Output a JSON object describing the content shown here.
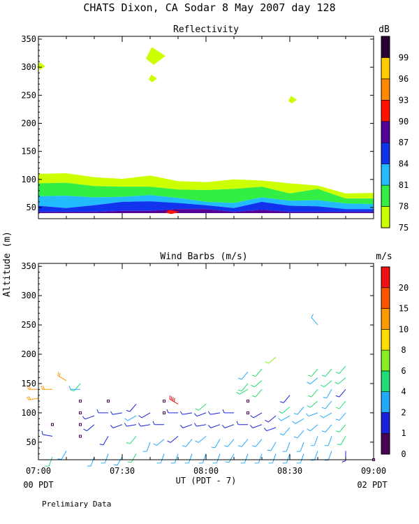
{
  "page": {
    "title": "CHATS Dixon, CA  Sodar   8 May 2007  day 128",
    "footer_note": "Prelimiary Data",
    "y_axis_label": "Altitude (m)",
    "x_axis_label": "UT  (PDT - 7)",
    "x_left_sub": "00 PDT",
    "x_right_sub": "02 PDT"
  },
  "chart_data": [
    {
      "type": "heatmap",
      "title": "Reflectivity",
      "colorbar_unit": "dB",
      "x_ticks": [
        "07:00",
        "07:30",
        "08:00",
        "08:30",
        "09:00"
      ],
      "xlim": [
        "07:00",
        "09:00"
      ],
      "y_ticks": [
        50,
        100,
        150,
        200,
        250,
        300,
        350
      ],
      "ylim": [
        30,
        355
      ],
      "levels": [
        75,
        78,
        81,
        84,
        87,
        90,
        93,
        96,
        99
      ],
      "level_colors": [
        "#ccff00",
        "#33ee44",
        "#22bbff",
        "#1133ee",
        "#550099",
        "#ff1100",
        "#ff8800",
        "#ffcc00",
        "#2a0033"
      ],
      "bands": [
        {
          "level": 75,
          "top": [
            110,
            111,
            104,
            101,
            107,
            97,
            95,
            100,
            98,
            93,
            89,
            75,
            76,
            78
          ],
          "bottom": [
            93,
            94,
            88,
            87,
            87,
            82,
            81,
            83,
            87,
            75,
            83,
            66,
            66,
            70
          ]
        },
        {
          "level": 78,
          "top": [
            93,
            94,
            88,
            87,
            87,
            82,
            81,
            83,
            87,
            75,
            83,
            66,
            66,
            70
          ],
          "bottom": [
            70,
            71,
            68,
            69,
            72,
            67,
            60,
            58,
            68,
            62,
            63,
            57,
            56,
            62
          ]
        },
        {
          "level": 81,
          "top": [
            70,
            71,
            68,
            69,
            72,
            67,
            60,
            58,
            68,
            62,
            63,
            57,
            56,
            62
          ],
          "bottom": [
            53,
            49,
            54,
            60,
            61,
            58,
            54,
            49,
            60,
            53,
            52,
            47,
            47,
            52
          ]
        },
        {
          "level": 84,
          "top": [
            53,
            49,
            54,
            60,
            61,
            58,
            54,
            49,
            60,
            53,
            52,
            47,
            47,
            52
          ],
          "bottom": [
            42,
            42,
            42,
            44,
            44,
            47,
            47,
            42,
            46,
            42,
            42,
            42,
            42,
            42
          ]
        },
        {
          "level": 87,
          "top": [
            42,
            42,
            42,
            44,
            44,
            47,
            47,
            42,
            46,
            42,
            42,
            42,
            42,
            42
          ],
          "bottom": [
            40,
            40,
            40,
            40,
            40,
            40,
            40,
            40,
            40,
            40,
            40,
            40,
            40,
            40
          ]
        }
      ],
      "band_times": [
        "07:00",
        "07:10",
        "07:20",
        "07:30",
        "07:40",
        "07:50",
        "08:00",
        "08:10",
        "08:20",
        "08:30",
        "08:40",
        "08:50",
        "09:00",
        "09:00"
      ],
      "patches": [
        {
          "level": 90,
          "time": "07:48",
          "alt": 42
        },
        {
          "level": 75,
          "time": "07:42",
          "alt": 320
        },
        {
          "level": 75,
          "time": "07:41",
          "alt": 280
        },
        {
          "level": 75,
          "time": "07:01",
          "alt": 302
        },
        {
          "level": 75,
          "time": "08:31",
          "alt": 242
        }
      ]
    },
    {
      "type": "scatter",
      "title": "Wind Barbs (m/s)",
      "colorbar_unit": "m/s",
      "x_ticks": [
        "07:00",
        "07:30",
        "08:00",
        "08:30",
        "09:00"
      ],
      "xlim": [
        "07:00",
        "09:00"
      ],
      "y_ticks": [
        50,
        100,
        150,
        200,
        250,
        300,
        350
      ],
      "ylim": [
        20,
        355
      ],
      "levels": [
        0,
        1,
        2,
        4,
        6,
        8,
        10,
        15,
        20
      ],
      "level_colors": [
        "#4a0055",
        "#1a22dd",
        "#22aaff",
        "#22dd77",
        "#88ee22",
        "#ffdd00",
        "#ff9900",
        "#ff5500",
        "#ee1111"
      ],
      "barbs": [
        {
          "time": "07:00",
          "alt": 140,
          "speed": 12,
          "dir": 270
        },
        {
          "time": "07:00",
          "alt": 125,
          "speed": 12,
          "dir": 260
        },
        {
          "time": "07:05",
          "alt": 140,
          "speed": 12,
          "dir": 270
        },
        {
          "time": "07:05",
          "alt": 80,
          "speed": 0.5,
          "dir": 0
        },
        {
          "time": "07:05",
          "alt": 60,
          "speed": 1.5,
          "dir": 280
        },
        {
          "time": "07:05",
          "alt": 25,
          "speed": 5,
          "dir": 200
        },
        {
          "time": "07:10",
          "alt": 155,
          "speed": 12,
          "dir": 300
        },
        {
          "time": "07:10",
          "alt": 35,
          "speed": 3,
          "dir": 210
        },
        {
          "time": "07:15",
          "alt": 150,
          "speed": 5,
          "dir": 220
        },
        {
          "time": "07:15",
          "alt": 140,
          "speed": 3,
          "dir": 270
        },
        {
          "time": "07:15",
          "alt": 120,
          "speed": 0.5,
          "dir": 0
        },
        {
          "time": "07:15",
          "alt": 100,
          "speed": 0.5,
          "dir": 0
        },
        {
          "time": "07:15",
          "alt": 80,
          "speed": 0.5,
          "dir": 0
        },
        {
          "time": "07:15",
          "alt": 60,
          "speed": 0.5,
          "dir": 0
        },
        {
          "time": "07:20",
          "alt": 95,
          "speed": 1.5,
          "dir": 250
        },
        {
          "time": "07:20",
          "alt": 80,
          "speed": 1.5,
          "dir": 230
        },
        {
          "time": "07:20",
          "alt": 25,
          "speed": 3,
          "dir": 200
        },
        {
          "time": "07:25",
          "alt": 120,
          "speed": 0.5,
          "dir": 0
        },
        {
          "time": "07:25",
          "alt": 100,
          "speed": 1.5,
          "dir": 270
        },
        {
          "time": "07:25",
          "alt": 60,
          "speed": 1.5,
          "dir": 210
        },
        {
          "time": "07:25",
          "alt": 30,
          "speed": 3,
          "dir": 200
        },
        {
          "time": "07:30",
          "alt": 100,
          "speed": 1.5,
          "dir": 260
        },
        {
          "time": "07:30",
          "alt": 80,
          "speed": 1.5,
          "dir": 250
        },
        {
          "time": "07:30",
          "alt": 25,
          "speed": 3,
          "dir": 210
        },
        {
          "time": "07:35",
          "alt": 115,
          "speed": 1.5,
          "dir": 220
        },
        {
          "time": "07:35",
          "alt": 95,
          "speed": 3,
          "dir": 240
        },
        {
          "time": "07:35",
          "alt": 80,
          "speed": 1.5,
          "dir": 260
        },
        {
          "time": "07:35",
          "alt": 60,
          "speed": 5,
          "dir": 220
        },
        {
          "time": "07:35",
          "alt": 30,
          "speed": 4,
          "dir": 210
        },
        {
          "time": "07:40",
          "alt": 100,
          "speed": 1.5,
          "dir": 240
        },
        {
          "time": "07:40",
          "alt": 80,
          "speed": 1.5,
          "dir": 260
        },
        {
          "time": "07:40",
          "alt": 50,
          "speed": 3,
          "dir": 200
        },
        {
          "time": "07:45",
          "alt": 120,
          "speed": 0.5,
          "dir": 0
        },
        {
          "time": "07:45",
          "alt": 100,
          "speed": 0.5,
          "dir": 0
        },
        {
          "time": "07:45",
          "alt": 80,
          "speed": 1.5,
          "dir": 270
        },
        {
          "time": "07:45",
          "alt": 55,
          "speed": 3,
          "dir": 230
        },
        {
          "time": "07:45",
          "alt": 30,
          "speed": 3,
          "dir": 200
        },
        {
          "time": "07:50",
          "alt": 115,
          "speed": 20,
          "dir": 300
        },
        {
          "time": "07:50",
          "alt": 100,
          "speed": 1.5,
          "dir": 270
        },
        {
          "time": "07:50",
          "alt": 60,
          "speed": 1.5,
          "dir": 230
        },
        {
          "time": "07:50",
          "alt": 30,
          "speed": 3,
          "dir": 200
        },
        {
          "time": "07:55",
          "alt": 100,
          "speed": 1.5,
          "dir": 260
        },
        {
          "time": "07:55",
          "alt": 80,
          "speed": 1.5,
          "dir": 250
        },
        {
          "time": "07:55",
          "alt": 55,
          "speed": 3,
          "dir": 220
        },
        {
          "time": "07:55",
          "alt": 30,
          "speed": 3,
          "dir": 200
        },
        {
          "time": "08:00",
          "alt": 115,
          "speed": 5,
          "dir": 230
        },
        {
          "time": "08:00",
          "alt": 100,
          "speed": 1.5,
          "dir": 250
        },
        {
          "time": "08:00",
          "alt": 80,
          "speed": 1.5,
          "dir": 260
        },
        {
          "time": "08:00",
          "alt": 60,
          "speed": 3,
          "dir": 230
        },
        {
          "time": "08:00",
          "alt": 30,
          "speed": 3,
          "dir": 200
        },
        {
          "time": "08:05",
          "alt": 100,
          "speed": 1.5,
          "dir": 260
        },
        {
          "time": "08:05",
          "alt": 80,
          "speed": 1.5,
          "dir": 250
        },
        {
          "time": "08:05",
          "alt": 55,
          "speed": 3,
          "dir": 210
        },
        {
          "time": "08:05",
          "alt": 30,
          "speed": 3,
          "dir": 200
        },
        {
          "time": "08:10",
          "alt": 100,
          "speed": 1.5,
          "dir": 270
        },
        {
          "time": "08:10",
          "alt": 80,
          "speed": 1.5,
          "dir": 250
        },
        {
          "time": "08:10",
          "alt": 55,
          "speed": 3,
          "dir": 220
        },
        {
          "time": "08:10",
          "alt": 30,
          "speed": 3,
          "dir": 210
        },
        {
          "time": "08:15",
          "alt": 170,
          "speed": 3,
          "dir": 220
        },
        {
          "time": "08:15",
          "alt": 150,
          "speed": 4,
          "dir": 220
        },
        {
          "time": "08:15",
          "alt": 140,
          "speed": 4,
          "dir": 240
        },
        {
          "time": "08:15",
          "alt": 120,
          "speed": 0.5,
          "dir": 0
        },
        {
          "time": "08:15",
          "alt": 100,
          "speed": 0.5,
          "dir": 0
        },
        {
          "time": "08:15",
          "alt": 80,
          "speed": 1.5,
          "dir": 270
        },
        {
          "time": "08:15",
          "alt": 55,
          "speed": 3,
          "dir": 220
        },
        {
          "time": "08:15",
          "alt": 30,
          "speed": 3,
          "dir": 200
        },
        {
          "time": "08:20",
          "alt": 175,
          "speed": 5,
          "dir": 220
        },
        {
          "time": "08:20",
          "alt": 155,
          "speed": 5,
          "dir": 230
        },
        {
          "time": "08:20",
          "alt": 140,
          "speed": 5,
          "dir": 220
        },
        {
          "time": "08:20",
          "alt": 100,
          "speed": 1.5,
          "dir": 240
        },
        {
          "time": "08:20",
          "alt": 80,
          "speed": 1.5,
          "dir": 250
        },
        {
          "time": "08:20",
          "alt": 55,
          "speed": 3,
          "dir": 220
        },
        {
          "time": "08:20",
          "alt": 30,
          "speed": 3,
          "dir": 200
        },
        {
          "time": "08:25",
          "alt": 195,
          "speed": 7,
          "dir": 230
        },
        {
          "time": "08:25",
          "alt": 95,
          "speed": 1.5,
          "dir": 230
        },
        {
          "time": "08:25",
          "alt": 75,
          "speed": 1.5,
          "dir": 250
        },
        {
          "time": "08:25",
          "alt": 50,
          "speed": 3,
          "dir": 210
        },
        {
          "time": "08:25",
          "alt": 30,
          "speed": 3,
          "dir": 200
        },
        {
          "time": "08:30",
          "alt": 130,
          "speed": 1.5,
          "dir": 220
        },
        {
          "time": "08:30",
          "alt": 110,
          "speed": 5,
          "dir": 230
        },
        {
          "time": "08:30",
          "alt": 95,
          "speed": 3,
          "dir": 240
        },
        {
          "time": "08:30",
          "alt": 75,
          "speed": 3,
          "dir": 220
        },
        {
          "time": "08:30",
          "alt": 50,
          "speed": 3,
          "dir": 200
        },
        {
          "time": "08:30",
          "alt": 30,
          "speed": 3,
          "dir": 200
        },
        {
          "time": "08:35",
          "alt": 110,
          "speed": 3,
          "dir": 220
        },
        {
          "time": "08:35",
          "alt": 90,
          "speed": 3,
          "dir": 240
        },
        {
          "time": "08:35",
          "alt": 70,
          "speed": 3,
          "dir": 220
        },
        {
          "time": "08:35",
          "alt": 50,
          "speed": 3,
          "dir": 200
        },
        {
          "time": "08:35",
          "alt": 30,
          "speed": 3,
          "dir": 200
        },
        {
          "time": "08:40",
          "alt": 250,
          "speed": 3,
          "dir": 320
        },
        {
          "time": "08:40",
          "alt": 175,
          "speed": 4,
          "dir": 220
        },
        {
          "time": "08:40",
          "alt": 160,
          "speed": 3,
          "dir": 230
        },
        {
          "time": "08:40",
          "alt": 140,
          "speed": 4,
          "dir": 220
        },
        {
          "time": "08:40",
          "alt": 120,
          "speed": 4,
          "dir": 230
        },
        {
          "time": "08:40",
          "alt": 100,
          "speed": 3,
          "dir": 250
        },
        {
          "time": "08:40",
          "alt": 80,
          "speed": 3,
          "dir": 230
        },
        {
          "time": "08:40",
          "alt": 60,
          "speed": 3,
          "dir": 200
        },
        {
          "time": "08:40",
          "alt": 35,
          "speed": 3,
          "dir": 200
        },
        {
          "time": "08:45",
          "alt": 175,
          "speed": 5,
          "dir": 220
        },
        {
          "time": "08:45",
          "alt": 155,
          "speed": 4,
          "dir": 230
        },
        {
          "time": "08:45",
          "alt": 140,
          "speed": 3,
          "dir": 210
        },
        {
          "time": "08:45",
          "alt": 120,
          "speed": 3,
          "dir": 220
        },
        {
          "time": "08:45",
          "alt": 100,
          "speed": 3,
          "dir": 240
        },
        {
          "time": "08:45",
          "alt": 80,
          "speed": 3,
          "dir": 220
        },
        {
          "time": "08:45",
          "alt": 60,
          "speed": 3,
          "dir": 200
        },
        {
          "time": "08:45",
          "alt": 35,
          "speed": 3,
          "dir": 200
        },
        {
          "time": "08:50",
          "alt": 180,
          "speed": 5,
          "dir": 220
        },
        {
          "time": "08:50",
          "alt": 160,
          "speed": 5,
          "dir": 230
        },
        {
          "time": "08:50",
          "alt": 140,
          "speed": 1.5,
          "dir": 220
        },
        {
          "time": "08:50",
          "alt": 120,
          "speed": 4,
          "dir": 220
        },
        {
          "time": "08:50",
          "alt": 100,
          "speed": 3,
          "dir": 220
        },
        {
          "time": "08:50",
          "alt": 80,
          "speed": 4,
          "dir": 220
        },
        {
          "time": "08:50",
          "alt": 60,
          "speed": 4,
          "dir": 210
        },
        {
          "time": "08:50",
          "alt": 35,
          "speed": 1.5,
          "dir": 180
        },
        {
          "time": "09:00",
          "alt": 20,
          "speed": 0.5,
          "dir": 120
        }
      ]
    }
  ]
}
